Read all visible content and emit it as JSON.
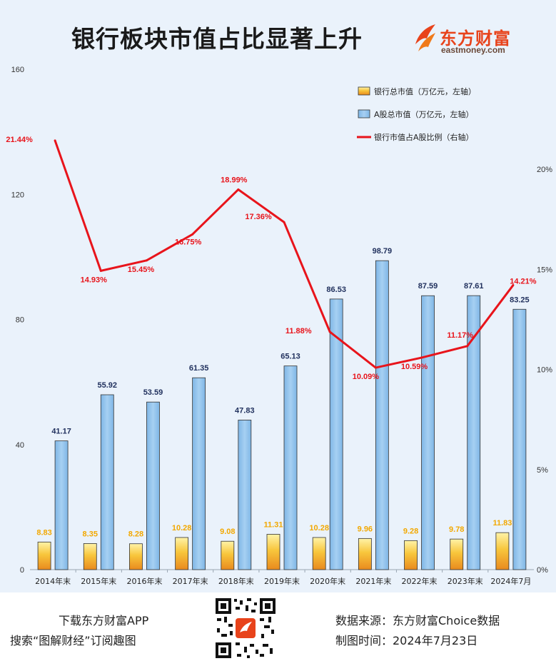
{
  "header": {
    "title": "银行板块市值占比显著上升",
    "brand_name": "东方财富",
    "brand_sub": "eastmoney.com",
    "brand_color": "#e8431b"
  },
  "chart_data": {
    "type": "bar",
    "categories": [
      "2014年末",
      "2015年末",
      "2016年末",
      "2017年末",
      "2018年末",
      "2019年末",
      "2020年末",
      "2021年末",
      "2022年末",
      "2023年末",
      "2024年7月"
    ],
    "series": [
      {
        "name": "银行总市值（万亿元，左轴）",
        "type": "bar",
        "axis": "left",
        "color": "#f5c33b",
        "values": [
          8.83,
          8.35,
          8.28,
          10.28,
          9.08,
          11.31,
          10.28,
          9.96,
          9.28,
          9.78,
          11.83
        ],
        "labels": [
          "8.83",
          "8.35",
          "8.28",
          "10.28",
          "9.08",
          "11.31",
          "10.28",
          "9.96",
          "9.28",
          "9.78",
          "11.83"
        ]
      },
      {
        "name": "A股总市值（万亿元，左轴）",
        "type": "bar",
        "axis": "left",
        "color": "#8ec1ea",
        "values": [
          41.17,
          55.92,
          53.59,
          61.35,
          47.83,
          65.13,
          86.53,
          98.79,
          87.59,
          87.61,
          83.25
        ],
        "labels": [
          "41.17",
          "55.92",
          "53.59",
          "61.35",
          "47.83",
          "65.13",
          "86.53",
          "98.79",
          "87.59",
          "87.61",
          "83.25"
        ]
      },
      {
        "name": "银行市值占A股比例（右轴）",
        "type": "line",
        "axis": "right",
        "color": "#e8141b",
        "values": [
          21.44,
          14.93,
          15.45,
          16.75,
          18.99,
          17.36,
          11.88,
          10.09,
          10.59,
          11.17,
          14.21
        ],
        "labels": [
          "21.44%",
          "14.93%",
          "15.45%",
          "16.75%",
          "18.99%",
          "17.36%",
          "11.88%",
          "10.09%",
          "10.59%",
          "11.17%",
          "14.21%"
        ]
      }
    ],
    "left_axis": {
      "ylim": [
        0,
        160
      ],
      "ticks": [
        0,
        40,
        80,
        120,
        160
      ],
      "tick_labels": [
        "0",
        "40",
        "80",
        "120",
        "160"
      ]
    },
    "right_axis": {
      "ylim": [
        0,
        25
      ],
      "ticks": [
        0,
        5,
        10,
        15,
        20
      ],
      "tick_labels": [
        "0%",
        "5%",
        "10%",
        "15%",
        "20%"
      ]
    },
    "legend": "top-right",
    "grid": false
  },
  "footer": {
    "line1": "下载东方财富APP",
    "line2": "搜索“图解财经”订阅趣图",
    "source": "数据来源：东方财富Choice数据",
    "date": "制图时间：2024年7月23日"
  }
}
